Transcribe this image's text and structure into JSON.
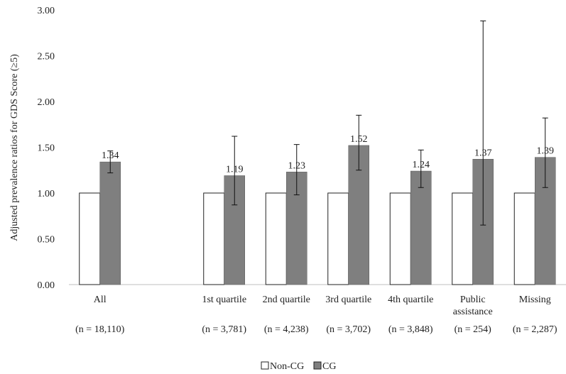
{
  "chart_data": {
    "type": "bar",
    "ylabel": "Adjusted prevalence ratios for GDS Score (≥5)",
    "ylim": [
      0,
      3.0
    ],
    "yticks": [
      "0.00",
      "0.50",
      "1.00",
      "1.50",
      "2.00",
      "2.50",
      "3.00"
    ],
    "grid": false,
    "legend_position": "bottom-center",
    "categories": [
      {
        "label": [
          "All"
        ],
        "n": "(n = 18,110)"
      },
      {
        "label": [],
        "n": ""
      },
      {
        "label": [
          "1st quartile"
        ],
        "n": "(n = 3,781)"
      },
      {
        "label": [
          "2nd quartile"
        ],
        "n": "(n = 4,238)"
      },
      {
        "label": [
          "3rd quartile"
        ],
        "n": "(n = 3,702)"
      },
      {
        "label": [
          "4th quartile"
        ],
        "n": "(n = 3,848)"
      },
      {
        "label": [
          "Public",
          "assistance"
        ],
        "n": "(n = 254)"
      },
      {
        "label": [
          "Missing"
        ],
        "n": "(n = 2,287)"
      }
    ],
    "series": [
      {
        "name": "Non-CG",
        "color": "#ffffff",
        "values": [
          1.0,
          null,
          1.0,
          1.0,
          1.0,
          1.0,
          1.0,
          1.0
        ]
      },
      {
        "name": "CG",
        "color": "#7f7f7f",
        "values": [
          1.34,
          null,
          1.19,
          1.23,
          1.52,
          1.24,
          1.37,
          1.39
        ],
        "labels": [
          "1.34",
          "",
          "1.19",
          "1.23",
          "1.52",
          "1.24",
          "1.37",
          "1.39"
        ],
        "ci_low": [
          1.22,
          null,
          0.87,
          0.98,
          1.25,
          1.06,
          0.65,
          1.06
        ],
        "ci_high": [
          1.46,
          null,
          1.62,
          1.53,
          1.85,
          1.47,
          2.88,
          1.82
        ]
      }
    ]
  }
}
